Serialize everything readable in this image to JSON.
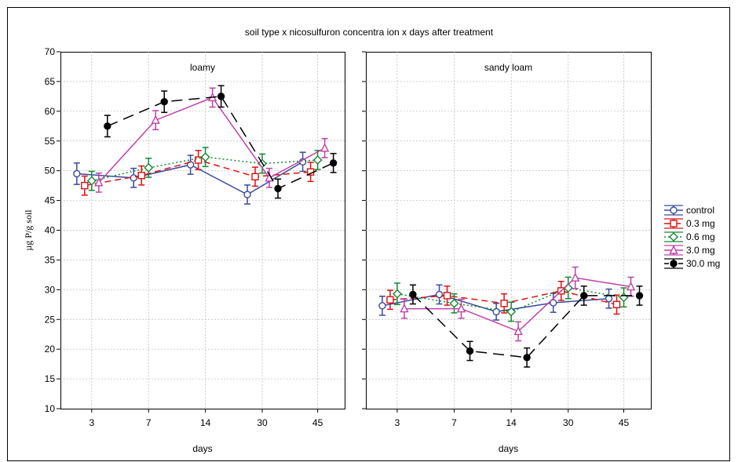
{
  "chart_data": {
    "type": "line",
    "title": "soil type x nicosulfuron concentra ion x days after treatment",
    "ylabel": "µg P/g soil",
    "xlabel": "days",
    "ylim": [
      10,
      70
    ],
    "yticks": [
      10,
      15,
      20,
      25,
      30,
      35,
      40,
      45,
      50,
      55,
      60,
      65,
      70
    ],
    "categories": [
      "3",
      "7",
      "14",
      "30",
      "45"
    ],
    "grid": true,
    "legend_position": "right",
    "series_styles": [
      {
        "name": "control",
        "color": "#3a4a9e",
        "dash": "",
        "marker": "circle",
        "fill": "#ffffff"
      },
      {
        "name": "0.3 mg",
        "color": "#e01010",
        "dash": "8,5",
        "marker": "square",
        "fill": "#ffffff"
      },
      {
        "name": "0.6 mg",
        "color": "#118833",
        "dash": "2,3",
        "marker": "diamond",
        "fill": "#ffffff"
      },
      {
        "name": "3.0 mg",
        "color": "#c040a8",
        "dash": "",
        "marker": "triangle",
        "fill": "#ffffff"
      },
      {
        "name": "30.0 mg",
        "color": "#000000",
        "dash": "14,8",
        "marker": "circle",
        "fill": "#000000"
      }
    ],
    "panels": [
      {
        "title": "loamy",
        "series": [
          {
            "name": "control",
            "values": [
              49.5,
              48.8,
              51.0,
              46.0,
              51.5
            ],
            "errors": [
              1.8,
              1.6,
              1.6,
              1.6,
              1.6
            ]
          },
          {
            "name": "0.3 mg",
            "values": [
              47.5,
              49.2,
              51.8,
              49.0,
              49.8
            ],
            "errors": [
              1.6,
              1.6,
              1.6,
              1.6,
              1.6
            ]
          },
          {
            "name": "0.6 mg",
            "values": [
              48.3,
              50.5,
              52.3,
              51.2,
              51.8
            ],
            "errors": [
              1.6,
              1.6,
              1.6,
              1.6,
              1.6
            ]
          },
          {
            "name": "3.0 mg",
            "values": [
              48.0,
              58.5,
              62.3,
              48.8,
              53.8
            ],
            "errors": [
              1.6,
              1.6,
              1.6,
              1.6,
              1.6
            ]
          },
          {
            "name": "30.0 mg",
            "values": [
              57.5,
              61.6,
              62.5,
              47.0,
              51.3
            ],
            "errors": [
              1.8,
              1.8,
              1.8,
              1.6,
              1.6
            ]
          }
        ]
      },
      {
        "title": "sandy loam",
        "series": [
          {
            "name": "control",
            "values": [
              27.3,
              29.2,
              26.3,
              27.8,
              28.5
            ],
            "errors": [
              1.6,
              1.6,
              1.4,
              1.6,
              1.6
            ]
          },
          {
            "name": "0.3 mg",
            "values": [
              28.3,
              29.0,
              27.7,
              29.8,
              27.5
            ],
            "errors": [
              1.6,
              1.6,
              1.6,
              1.6,
              1.6
            ]
          },
          {
            "name": "0.6 mg",
            "values": [
              29.3,
              27.7,
              26.3,
              30.3,
              28.7
            ],
            "errors": [
              1.8,
              1.6,
              1.6,
              1.8,
              1.6
            ]
          },
          {
            "name": "3.0 mg",
            "values": [
              26.8,
              26.8,
              23.0,
              32.0,
              30.5
            ],
            "errors": [
              1.6,
              1.6,
              1.6,
              1.8,
              1.6
            ]
          },
          {
            "name": "30.0 mg",
            "values": [
              29.2,
              19.7,
              18.6,
              29.0,
              29.0
            ],
            "errors": [
              1.6,
              1.6,
              1.6,
              1.6,
              1.6
            ]
          }
        ]
      }
    ]
  }
}
